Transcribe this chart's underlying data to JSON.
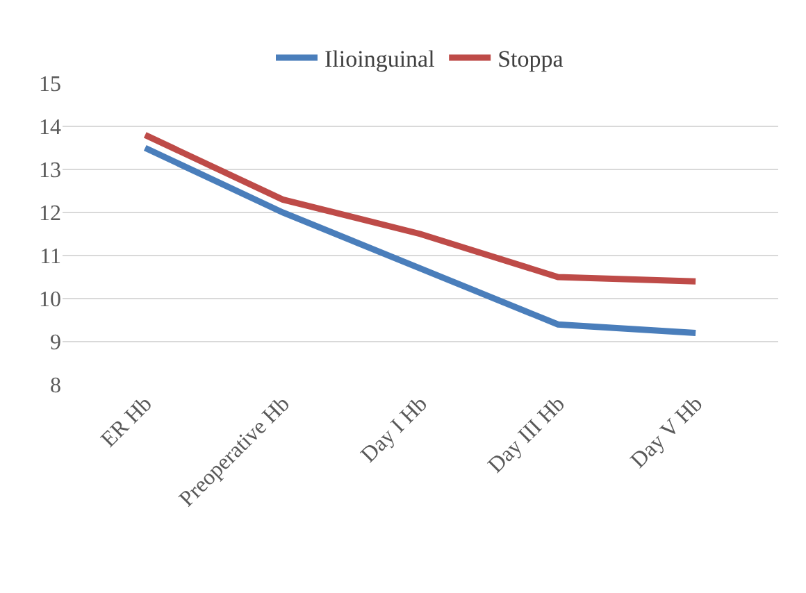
{
  "chart_data": {
    "type": "line",
    "categories": [
      "ER Hb",
      "Preoperative Hb",
      "Day I Hb",
      "Day III Hb",
      "Day V Hb"
    ],
    "series": [
      {
        "name": "Ilioinguinal",
        "color": "#4a7ebb",
        "values": [
          13.5,
          12.0,
          10.7,
          9.4,
          9.2
        ]
      },
      {
        "name": "Stoppa",
        "color": "#be4b48",
        "values": [
          13.8,
          12.3,
          11.5,
          10.5,
          10.4
        ]
      }
    ],
    "ylim": [
      8,
      15
    ],
    "yticks": [
      8,
      9,
      10,
      11,
      12,
      13,
      14,
      15
    ],
    "grid": "y",
    "legend": "top",
    "marker": "none",
    "line_style": "solid"
  }
}
